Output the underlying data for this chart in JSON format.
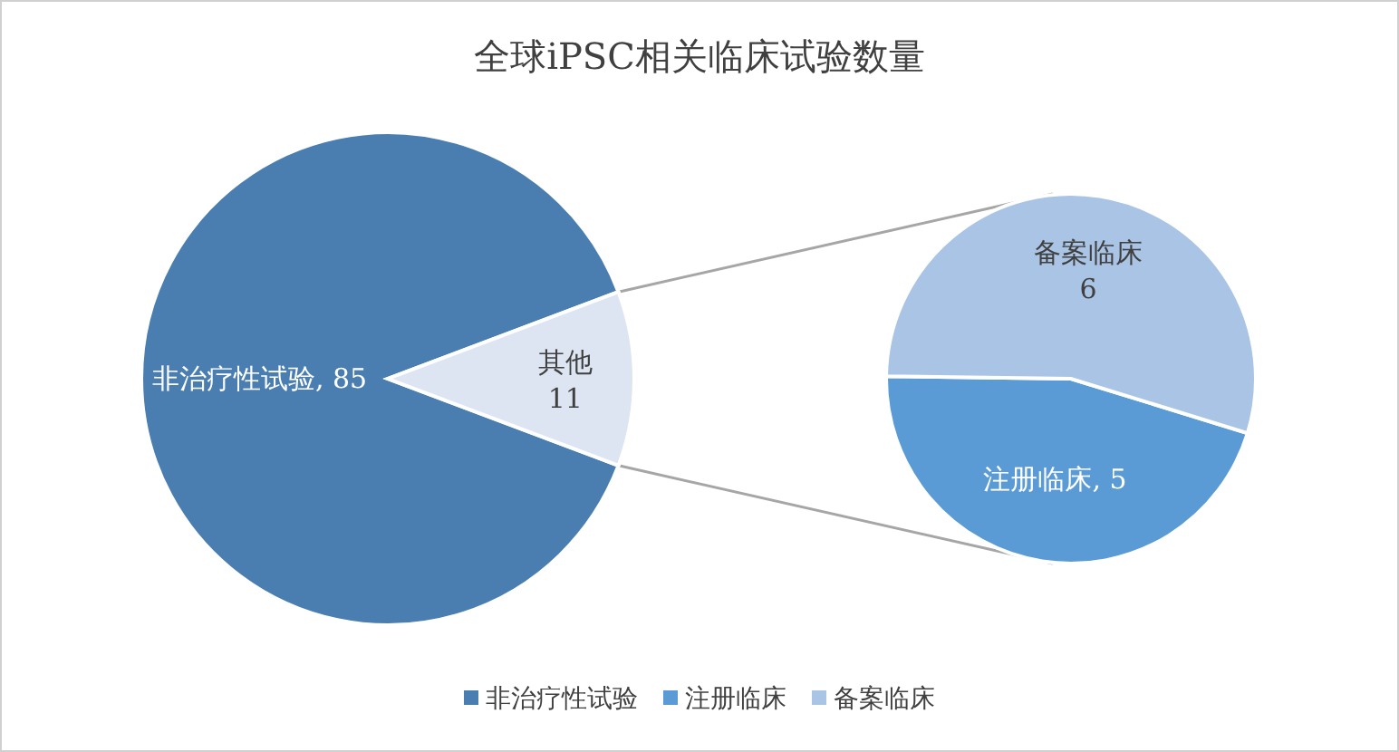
{
  "chart_data": [
    {
      "type": "pie",
      "title": "全球iPSC相关临床试验数量",
      "categories": [
        "非治疗性试验",
        "其他"
      ],
      "values": [
        85,
        11
      ],
      "colors": [
        "#4a7eb0",
        "#dde5f2"
      ],
      "value_labels": [
        ", 85",
        "11"
      ],
      "legend": "bottom"
    },
    {
      "type": "pie",
      "categories": [
        "注册临床",
        "备案临床"
      ],
      "values": [
        5,
        6
      ],
      "colors": [
        "#5b9bd5",
        "#a9c4e4"
      ],
      "value_labels": [
        ", 5",
        "6"
      ],
      "legend": "bottom"
    }
  ]
}
